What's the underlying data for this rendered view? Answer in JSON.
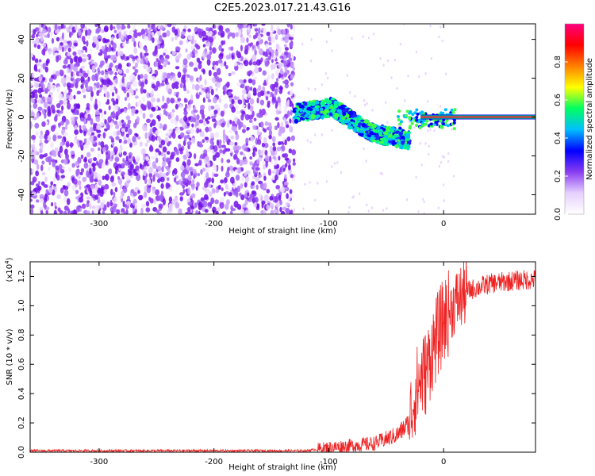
{
  "title": "C2E5.2023.017.21.43.G16",
  "chart_data": [
    {
      "type": "heatmap",
      "xlabel": "Height of straight line (km)",
      "ylabel": "Frequency (Hz)",
      "xlim": [
        -360,
        80
      ],
      "ylim": [
        -50,
        48
      ],
      "xticks": [
        -300,
        -200,
        -100,
        0
      ],
      "yticks": [
        -40,
        -20,
        0,
        20,
        40
      ],
      "colorbar": {
        "label": "Normalized spectral amplitude",
        "range": [
          0.0,
          1.0
        ],
        "ticks": [
          0.0,
          0.2,
          0.4,
          0.6,
          0.8
        ],
        "colors": [
          "#ffffff",
          "#e6d0ff",
          "#8a3cf0",
          "#0000ff",
          "#00bfff",
          "#00ff60",
          "#ffff00",
          "#ff8000",
          "#ff0000",
          "#ff0080"
        ]
      },
      "regions": [
        {
          "name": "noise",
          "x": [
            -360,
            -130
          ],
          "y": [
            -50,
            48
          ],
          "level": 0.15
        },
        {
          "name": "signal",
          "x": [
            -130,
            -30
          ],
          "center_freq": [
            2,
            5,
            -8,
            -12
          ],
          "level": 0.45
        },
        {
          "name": "tone",
          "x": [
            -20,
            80
          ],
          "center_freq": 0,
          "level": 1.0
        }
      ]
    },
    {
      "type": "line",
      "xlabel": "Height of straight line (km)",
      "ylabel": "SNR (10 * v/v)",
      "yunit": "(x10",
      "yunit_exp": "4",
      "yunit_close": ")",
      "xlim": [
        -360,
        80
      ],
      "ylim": [
        0,
        1.3
      ],
      "xticks": [
        -300,
        -200,
        -100,
        0
      ],
      "yticks": [
        0.0,
        0.2,
        0.4,
        0.6,
        0.8,
        1.0,
        1.2
      ],
      "ytick_labels": [
        "0.0",
        "0.2",
        "0.4",
        "0.6",
        "0.8",
        "1.0",
        "1.2"
      ],
      "color": "#ee2222",
      "trend": {
        "x": [
          -360,
          -120,
          -100,
          -60,
          -40,
          -30,
          -25,
          -20,
          -15,
          -10,
          0,
          10,
          20,
          40,
          60,
          80
        ],
        "y": [
          0.01,
          0.01,
          0.03,
          0.06,
          0.12,
          0.2,
          0.4,
          0.5,
          0.55,
          0.7,
          0.9,
          1.02,
          1.1,
          1.15,
          1.17,
          1.18
        ]
      }
    }
  ]
}
